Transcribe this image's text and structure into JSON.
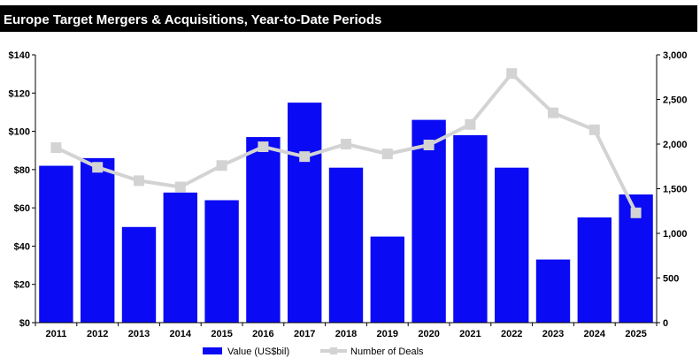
{
  "chart_data": {
    "type": "bar",
    "title": "Europe Target Mergers & Acquisitions, Year-to-Date Periods",
    "categories": [
      "2011",
      "2012",
      "2013",
      "2014",
      "2015",
      "2016",
      "2017",
      "2018",
      "2019",
      "2020",
      "2021",
      "2022",
      "2023",
      "2024",
      "2025"
    ],
    "series": [
      {
        "name": "Value (US$bil)",
        "type": "bar",
        "axis": "left",
        "color": "#0a0af5",
        "values": [
          82,
          86,
          50,
          68,
          64,
          97,
          115,
          81,
          45,
          106,
          98,
          81,
          33,
          55,
          67
        ]
      },
      {
        "name": "Number of Deals",
        "type": "line",
        "axis": "right",
        "color": "#d3d3d3",
        "values": [
          1960,
          1740,
          1590,
          1520,
          1760,
          1970,
          1860,
          2000,
          1890,
          1990,
          2220,
          2790,
          2350,
          2160,
          1230
        ]
      }
    ],
    "y_left": {
      "ylim": [
        0,
        140
      ],
      "ticks": [
        0,
        20,
        40,
        60,
        80,
        100,
        120,
        140
      ],
      "tick_labels": [
        "$0",
        "$20",
        "$40",
        "$60",
        "$80",
        "$100",
        "$120",
        "$140"
      ]
    },
    "y_right": {
      "ylim": [
        0,
        3000
      ],
      "ticks": [
        0,
        500,
        1000,
        1500,
        2000,
        2500,
        3000
      ],
      "tick_labels": [
        "0",
        "500",
        "1,000",
        "1,500",
        "2,000",
        "2,500",
        "3,000"
      ]
    },
    "grid": false,
    "legend": "bottom"
  }
}
